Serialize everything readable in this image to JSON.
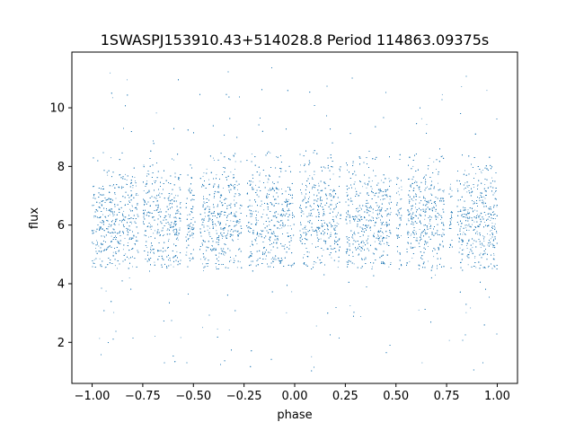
{
  "chart_data": {
    "type": "scatter",
    "title": "1SWASPJ153910.43+514028.8 Period 114863.09375s",
    "xlabel": "phase",
    "ylabel": "flux",
    "xlim": [
      -1.1,
      1.1
    ],
    "ylim": [
      0.6,
      11.9
    ],
    "xticks": [
      -1.0,
      -0.75,
      -0.5,
      -0.25,
      0.0,
      0.25,
      0.5,
      0.75,
      1.0
    ],
    "xtick_labels": [
      "−1.00",
      "−0.75",
      "−0.50",
      "−0.25",
      "0.00",
      "0.25",
      "0.50",
      "0.75",
      "1.00"
    ],
    "yticks": [
      2,
      4,
      6,
      8,
      10
    ],
    "ytick_labels": [
      "2",
      "4",
      "6",
      "8",
      "10"
    ],
    "grid": false,
    "point_color": "#1f77b4",
    "point_count_estimate": 14000,
    "series_summary": {
      "description_of_shape": "phase-folded light curve repeated twice over phase −1 to 1; dense band between flux ≈ 4.5 and 8.5, median ≈ 6.2; visible gaps near phase multiples of 0.25",
      "dense_band": [
        4.5,
        8.5
      ],
      "median_flux": 6.2,
      "gap_phases": [
        -0.76,
        -0.55,
        -0.48,
        -0.25,
        0.01,
        0.24,
        0.49,
        0.54,
        0.75,
        0.79
      ]
    }
  }
}
